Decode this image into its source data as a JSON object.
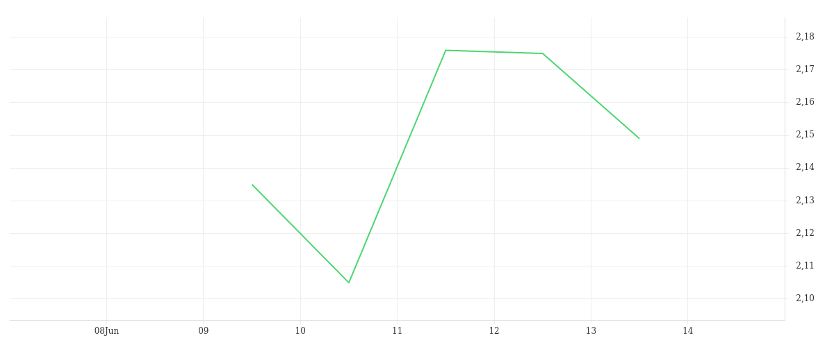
{
  "chart_data": {
    "type": "line",
    "x": [
      "--06-09T12:00",
      "--06-10T12:00",
      "--06-11T12:00",
      "--06-12T12:00",
      "--06-13T12:00"
    ],
    "series": [
      {
        "color": "#4cd672",
        "values": [
          2.135,
          2.105,
          2.176,
          2.175,
          2.149
        ]
      }
    ],
    "xlim": [
      "--06-07",
      "--06-15"
    ],
    "xticks": [
      {
        "value": "--06-08",
        "label": "08Jun"
      },
      {
        "value": "--06-09",
        "label": "09"
      },
      {
        "value": "--06-10",
        "label": "10"
      },
      {
        "value": "--06-11",
        "label": "11"
      },
      {
        "value": "--06-12",
        "label": "12"
      },
      {
        "value": "--06-13",
        "label": "13"
      },
      {
        "value": "--06-14",
        "label": "14"
      }
    ],
    "ylim": [
      2.0935,
      2.186
    ],
    "yticks": [
      {
        "value": 2.1,
        "label": "2,10"
      },
      {
        "value": 2.11,
        "label": "2,11"
      },
      {
        "value": 2.12,
        "label": "2,12"
      },
      {
        "value": 2.13,
        "label": "2,13"
      },
      {
        "value": 2.14,
        "label": "2,14"
      },
      {
        "value": 2.15,
        "label": "2,15"
      },
      {
        "value": 2.16,
        "label": "2,16"
      },
      {
        "value": 2.17,
        "label": "2,17"
      },
      {
        "value": 2.18,
        "label": "2,18"
      }
    ],
    "grid": true,
    "legend": false,
    "marker": "none",
    "line_style": "solid"
  }
}
